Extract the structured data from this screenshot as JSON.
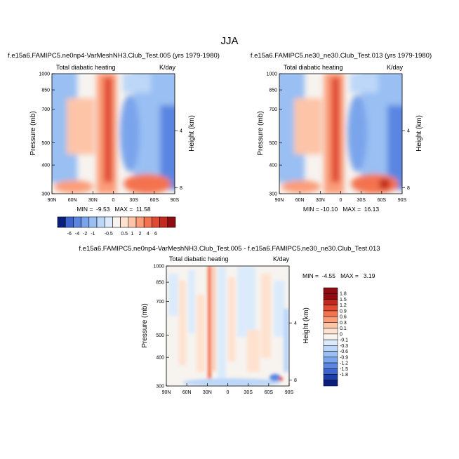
{
  "figure": {
    "title": "JJA"
  },
  "colors": {
    "warm": [
      "#fee2cf",
      "#fdc4a7",
      "#fb9d79",
      "#f4734f",
      "#e14a30",
      "#c22a1e",
      "#8f0c12"
    ],
    "cool": [
      "#dcebfc",
      "#bcd7f8",
      "#99bff3",
      "#7aa4ec",
      "#5a86e1",
      "#3d64cf",
      "#1c3ca9",
      "#0a1f7a"
    ],
    "neutral": "#f7f3ef"
  },
  "chart_data": [
    {
      "id": "panel-a",
      "type": "heatmap",
      "title": "f.e15a6.FAMIPC5.ne0np4-VarMeshNH3.Club_Test.005 (yrs 1979-1980)",
      "left_label": "Total diabatic heating",
      "right_label": "K/day",
      "ylabel": "Pressure (mb)",
      "ylabel_right": "Height (km)",
      "x_ticks": [
        "90N",
        "60N",
        "30N",
        "0",
        "30S",
        "60S",
        "90S"
      ],
      "y_ticks": [
        "300",
        "400",
        "500",
        "700",
        "850",
        "1000"
      ],
      "height_ticks": [
        "8",
        "4"
      ],
      "stats": "MIN =  -9.53   MAX =  11.58",
      "ylim": [
        1000,
        300
      ]
    },
    {
      "id": "panel-b",
      "type": "heatmap",
      "title": "f.e15a6.FAMIPC5.ne30_ne30.Club_Test.013 (yrs 1979-1980)",
      "left_label": "Total diabatic heating",
      "right_label": "K/day",
      "ylabel": "Pressure (mb)",
      "ylabel_right": "Height (km)",
      "x_ticks": [
        "90N",
        "60N",
        "30N",
        "0",
        "30S",
        "60S",
        "90S"
      ],
      "y_ticks": [
        "300",
        "400",
        "500",
        "700",
        "850",
        "1000"
      ],
      "height_ticks": [
        "8",
        "4"
      ],
      "stats": "MIN = -10.10   MAX =  16.13",
      "ylim": [
        1000,
        300
      ]
    },
    {
      "id": "panel-diff",
      "type": "heatmap",
      "title": "f.e15a6.FAMIPC5.ne0np4-VarMeshNH3.Club_Test.005 - f.e15a6.FAMIPC5.ne30_ne30.Club_Test.013",
      "left_label": "Total diabatic heating",
      "right_label": "K/day",
      "ylabel": "Pressure (mb)",
      "ylabel_right": "Height (km)",
      "x_ticks": [
        "90N",
        "60N",
        "30N",
        "0",
        "30S",
        "60S",
        "90S"
      ],
      "y_ticks": [
        "300",
        "400",
        "500",
        "700",
        "850",
        "1000"
      ],
      "height_ticks": [
        "8",
        "4"
      ],
      "stats": "MIN =  -4.55   MAX =   3.19",
      "ylim": [
        1000,
        300
      ]
    }
  ],
  "colorbar_top": {
    "labels": [
      "-6",
      "-4",
      "-2",
      "-1",
      "-0.5",
      "0.5",
      "1",
      "2",
      "4",
      "6"
    ]
  },
  "colorbar_diff": {
    "labels": [
      "1.8",
      "1.5",
      "1.2",
      "0.9",
      "0.6",
      "0.3",
      "0.1",
      "0",
      "-0.1",
      "-0.3",
      "-0.6",
      "-0.9",
      "-1.2",
      "-1.5",
      "-1.8"
    ]
  }
}
